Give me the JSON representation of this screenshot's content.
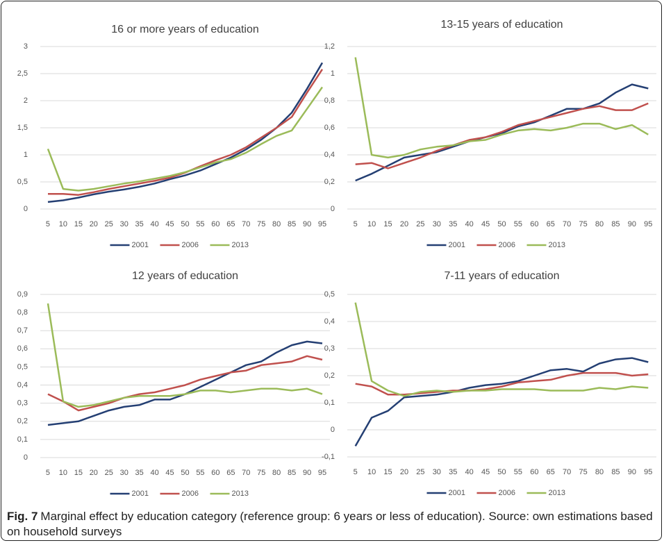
{
  "chart_data": [
    {
      "type": "line",
      "title": "16 or more years of education",
      "categories": [
        "5",
        "10",
        "15",
        "20",
        "25",
        "30",
        "35",
        "40",
        "45",
        "50",
        "55",
        "60",
        "65",
        "70",
        "75",
        "80",
        "85",
        "90",
        "95"
      ],
      "series": [
        {
          "name": "2001",
          "color": "#243f73",
          "values": [
            0.13,
            0.16,
            0.21,
            0.27,
            0.32,
            0.36,
            0.41,
            0.47,
            0.55,
            0.62,
            0.71,
            0.83,
            0.95,
            1.1,
            1.28,
            1.5,
            1.78,
            2.22,
            2.7
          ]
        },
        {
          "name": "2006",
          "color": "#c0504d",
          "values": [
            0.28,
            0.28,
            0.26,
            0.31,
            0.37,
            0.42,
            0.47,
            0.52,
            0.58,
            0.67,
            0.79,
            0.9,
            1.0,
            1.14,
            1.32,
            1.5,
            1.7,
            2.15,
            2.58
          ]
        },
        {
          "name": "2013",
          "color": "#9bbb59",
          "values": [
            1.11,
            0.37,
            0.34,
            0.37,
            0.42,
            0.47,
            0.51,
            0.56,
            0.61,
            0.68,
            0.77,
            0.86,
            0.92,
            1.04,
            1.2,
            1.35,
            1.45,
            1.85,
            2.25
          ]
        }
      ],
      "ylim": [
        0,
        3
      ],
      "yticks": [
        0,
        {
          "value": 0.5,
          "label": "0,5"
        },
        1,
        {
          "value": 1.5,
          "label": "1,5"
        },
        2,
        {
          "value": 2.5,
          "label": "2,5"
        },
        3
      ],
      "grid": true
    },
    {
      "type": "line",
      "title": "13-15 years of education",
      "categories": [
        "5",
        "10",
        "15",
        "20",
        "25",
        "30",
        "35",
        "40",
        "45",
        "50",
        "55",
        "60",
        "65",
        "70",
        "75",
        "80",
        "85",
        "90",
        "95"
      ],
      "series": [
        {
          "name": "2001",
          "color": "#243f73",
          "values": [
            0.21,
            0.26,
            0.32,
            0.38,
            0.4,
            0.42,
            0.46,
            0.5,
            0.53,
            0.56,
            0.61,
            0.64,
            0.69,
            0.74,
            0.74,
            0.78,
            0.86,
            0.92,
            0.89
          ]
        },
        {
          "name": "2006",
          "color": "#c0504d",
          "values": [
            0.33,
            0.34,
            0.3,
            0.34,
            0.38,
            0.43,
            0.47,
            0.51,
            0.53,
            0.57,
            0.62,
            0.65,
            0.68,
            0.71,
            0.74,
            0.76,
            0.73,
            0.73,
            0.78
          ]
        },
        {
          "name": "2013",
          "color": "#9bbb59",
          "values": [
            1.12,
            0.4,
            0.38,
            0.4,
            0.44,
            0.46,
            0.47,
            0.5,
            0.51,
            0.55,
            0.58,
            0.59,
            0.58,
            0.6,
            0.63,
            0.63,
            0.59,
            0.62,
            0.55
          ]
        }
      ],
      "ylim": [
        0,
        1.2
      ],
      "yticks": [
        0,
        {
          "value": 0.2,
          "label": "0,2"
        },
        {
          "value": 0.4,
          "label": "0,4"
        },
        {
          "value": 0.6,
          "label": "0,6"
        },
        {
          "value": 0.8,
          "label": "0,8"
        },
        1,
        {
          "value": 1.2,
          "label": "1,2"
        }
      ],
      "grid": true
    },
    {
      "type": "line",
      "title": "12 years of education",
      "categories": [
        "5",
        "10",
        "15",
        "20",
        "25",
        "30",
        "35",
        "40",
        "45",
        "50",
        "55",
        "60",
        "65",
        "70",
        "75",
        "80",
        "85",
        "90",
        "95"
      ],
      "series": [
        {
          "name": "2001",
          "color": "#243f73",
          "values": [
            0.18,
            0.19,
            0.2,
            0.23,
            0.26,
            0.28,
            0.29,
            0.32,
            0.32,
            0.35,
            0.39,
            0.43,
            0.47,
            0.51,
            0.53,
            0.58,
            0.62,
            0.64,
            0.63
          ]
        },
        {
          "name": "2006",
          "color": "#c0504d",
          "values": [
            0.35,
            0.31,
            0.26,
            0.28,
            0.3,
            0.33,
            0.35,
            0.36,
            0.38,
            0.4,
            0.43,
            0.45,
            0.47,
            0.48,
            0.51,
            0.52,
            0.53,
            0.56,
            0.54
          ]
        },
        {
          "name": "2013",
          "color": "#9bbb59",
          "values": [
            0.85,
            0.31,
            0.28,
            0.29,
            0.31,
            0.33,
            0.34,
            0.34,
            0.34,
            0.35,
            0.37,
            0.37,
            0.36,
            0.37,
            0.38,
            0.38,
            0.37,
            0.38,
            0.35
          ]
        }
      ],
      "ylim": [
        0,
        0.9
      ],
      "yticks": [
        0,
        {
          "value": 0.1,
          "label": "0,1"
        },
        {
          "value": 0.2,
          "label": "0,2"
        },
        {
          "value": 0.3,
          "label": "0,3"
        },
        {
          "value": 0.4,
          "label": "0,4"
        },
        {
          "value": 0.5,
          "label": "0,5"
        },
        {
          "value": 0.6,
          "label": "0,6"
        },
        {
          "value": 0.7,
          "label": "0,7"
        },
        {
          "value": 0.8,
          "label": "0,8"
        },
        {
          "value": 0.9,
          "label": "0,9"
        }
      ],
      "grid": true
    },
    {
      "type": "line",
      "title": "7-11  years of education",
      "categories": [
        "5",
        "10",
        "15",
        "20",
        "25",
        "30",
        "35",
        "40",
        "45",
        "50",
        "55",
        "60",
        "65",
        "70",
        "75",
        "80",
        "85",
        "90",
        "95"
      ],
      "series": [
        {
          "name": "2001",
          "color": "#243f73",
          "values": [
            -0.06,
            0.045,
            0.07,
            0.12,
            0.125,
            0.13,
            0.14,
            0.155,
            0.165,
            0.17,
            0.18,
            0.2,
            0.22,
            0.225,
            0.215,
            0.245,
            0.26,
            0.265,
            0.25
          ]
        },
        {
          "name": "2006",
          "color": "#c0504d",
          "values": [
            0.17,
            0.16,
            0.13,
            0.13,
            0.135,
            0.14,
            0.145,
            0.145,
            0.15,
            0.16,
            0.175,
            0.18,
            0.185,
            0.2,
            0.21,
            0.21,
            0.21,
            0.2,
            0.205
          ]
        },
        {
          "name": "2013",
          "color": "#9bbb59",
          "values": [
            0.47,
            0.18,
            0.145,
            0.125,
            0.14,
            0.145,
            0.14,
            0.145,
            0.145,
            0.15,
            0.15,
            0.15,
            0.145,
            0.145,
            0.145,
            0.155,
            0.15,
            0.16,
            0.155
          ]
        }
      ],
      "ylim": [
        -0.1,
        0.5
      ],
      "yticks": [
        {
          "value": -0.1,
          "label": "-0,1"
        },
        0,
        {
          "value": 0.1,
          "label": "0,1"
        },
        {
          "value": 0.2,
          "label": "0,2"
        },
        {
          "value": 0.3,
          "label": "0,3"
        },
        {
          "value": 0.4,
          "label": "0,4"
        },
        {
          "value": 0.5,
          "label": "0,5"
        }
      ],
      "grid": true
    }
  ],
  "caption": {
    "label": "Fig. 7",
    "text": "Marginal effect by education category (reference group: 6 years or less of education). Source: own estimations based on household surveys"
  }
}
